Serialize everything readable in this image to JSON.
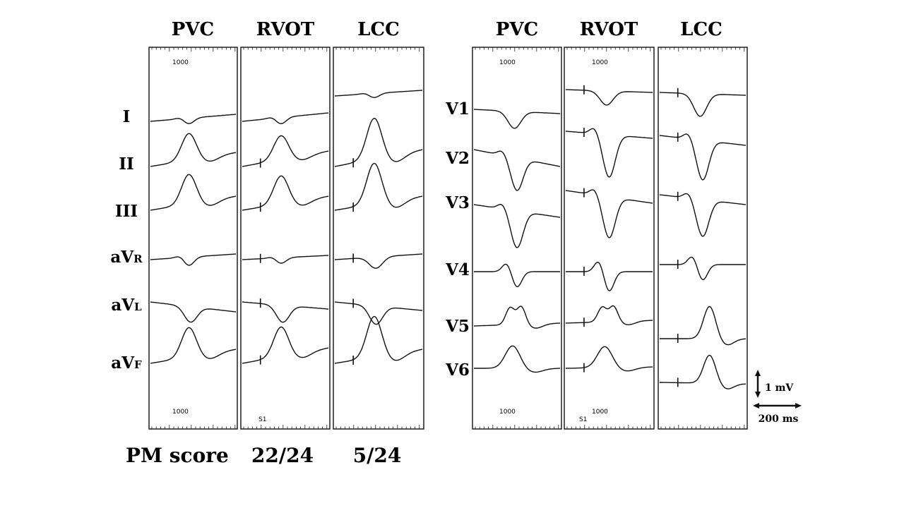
{
  "left_panel": {
    "columns": [
      "PVC",
      "RVOT",
      "LCC"
    ],
    "leads": [
      {
        "main": "I",
        "sub": ""
      },
      {
        "main": "II",
        "sub": ""
      },
      {
        "main": "III",
        "sub": ""
      },
      {
        "main": "aV",
        "sub": "R"
      },
      {
        "main": "aV",
        "sub": "L"
      },
      {
        "main": "aV",
        "sub": "F"
      }
    ],
    "top_marks": [
      "1000",
      "",
      ""
    ],
    "bottom_marks": [
      "1000",
      "S1",
      ""
    ]
  },
  "right_panel": {
    "columns": [
      "PVC",
      "RVOT",
      "LCC"
    ],
    "leads": [
      {
        "main": "V1",
        "sub": ""
      },
      {
        "main": "V2",
        "sub": ""
      },
      {
        "main": "V3",
        "sub": ""
      },
      {
        "main": "V4",
        "sub": ""
      },
      {
        "main": "V5",
        "sub": ""
      },
      {
        "main": "V6",
        "sub": ""
      }
    ],
    "top_marks": [
      "1000",
      "1000",
      ""
    ],
    "bottom_marks": [
      "1000",
      "1000",
      ""
    ],
    "bottom_marks_extra": [
      "",
      "S1",
      ""
    ]
  },
  "pm_score": {
    "label": "PM score",
    "rvot": "22/24",
    "lcc": "5/24"
  },
  "scale_bar": {
    "voltage": "1 mV",
    "time": "200 ms"
  }
}
